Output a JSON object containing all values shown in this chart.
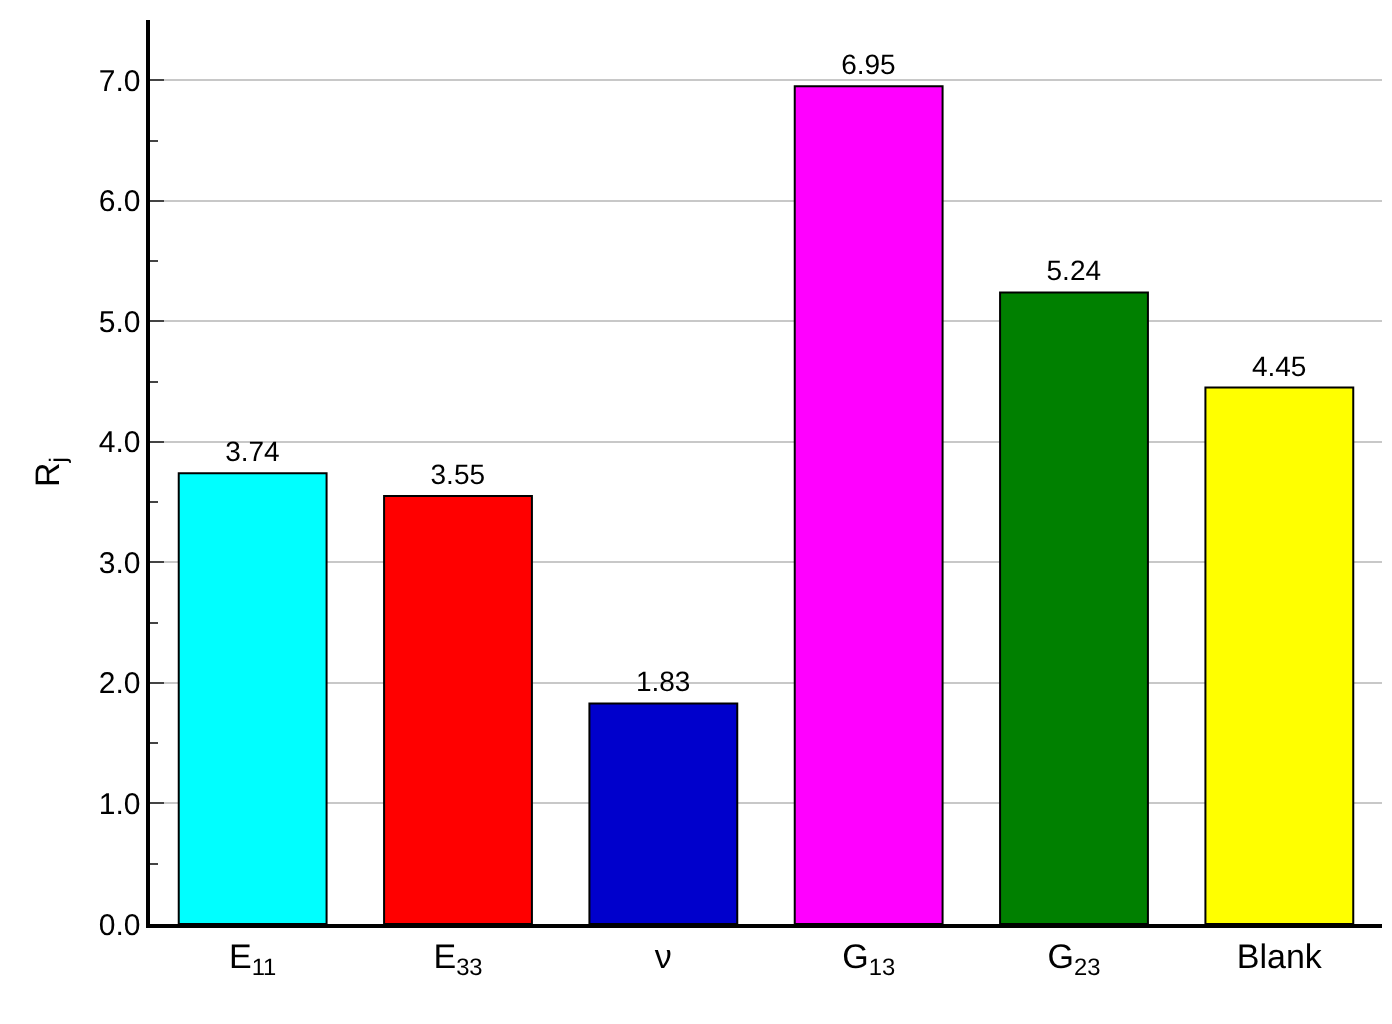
{
  "chart_data": {
    "type": "bar",
    "ylabel": "R$_{j}$",
    "categories": [
      "E$_{11}$",
      "E$_{33}$",
      "ν",
      "G$_{13}$",
      "G$_{23}$",
      "Blank"
    ],
    "values": [
      3.74,
      3.55,
      1.83,
      6.95,
      5.24,
      4.45
    ],
    "colors": [
      "#00ffff",
      "#ff0000",
      "#0000cc",
      "#ff00ff",
      "#008000",
      "#ffff00"
    ],
    "data_labels": true,
    "ylim": [
      0,
      7.5
    ],
    "yticks": [
      {
        "value": 0,
        "label": "0.0"
      },
      {
        "value": 1,
        "label": "1.0"
      },
      {
        "value": 2,
        "label": "2.0"
      },
      {
        "value": 3,
        "label": "3.0"
      },
      {
        "value": 4,
        "label": "4.0"
      },
      {
        "value": 5,
        "label": "5.0"
      },
      {
        "value": 6,
        "label": "6.0"
      },
      {
        "value": 7,
        "label": "7.0"
      }
    ],
    "grid": "y"
  }
}
